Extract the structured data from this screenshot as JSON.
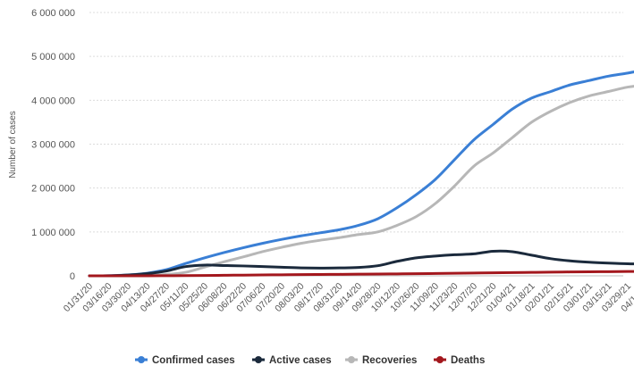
{
  "chart_data": {
    "type": "line",
    "ylabel": "Number of cases",
    "ylim": [
      0,
      6000000
    ],
    "yticks": [
      0,
      1000000,
      2000000,
      3000000,
      4000000,
      5000000,
      6000000
    ],
    "ytick_labels": [
      "0",
      "1 000 000",
      "2 000 000",
      "3 000 000",
      "4 000 000",
      "5 000 000",
      "6 000 000"
    ],
    "x_tick_labels": [
      "01/31/20",
      "03/16/20",
      "03/30/20",
      "04/13/20",
      "04/27/20",
      "05/11/20",
      "05/25/20",
      "06/08/20",
      "06/22/20",
      "07/06/20",
      "07/20/20",
      "08/03/20",
      "08/17/20",
      "08/31/20",
      "09/14/20",
      "09/28/20",
      "10/12/20",
      "10/26/20",
      "11/09/20",
      "11/23/20",
      "12/07/20",
      "12/21/20",
      "01/04/21",
      "01/18/21",
      "02/01/21",
      "02/15/21",
      "03/01/21",
      "03/15/21",
      "03/29/21",
      "04/12/21"
    ],
    "grid": true,
    "legend_position": "bottom",
    "x": [
      "01/31/20",
      "03/16/20",
      "03/30/20",
      "04/13/20",
      "04/27/20",
      "05/11/20",
      "05/25/20",
      "06/08/20",
      "06/22/20",
      "07/06/20",
      "07/20/20",
      "08/03/20",
      "08/17/20",
      "08/31/20",
      "09/14/20",
      "09/28/20",
      "10/12/20",
      "10/26/20",
      "11/09/20",
      "11/23/20",
      "12/07/20",
      "12/21/20",
      "01/04/21",
      "01/18/21",
      "02/01/21",
      "02/15/21",
      "03/01/21",
      "03/15/21",
      "03/29/21",
      "04/12/21",
      "04/21/21"
    ],
    "series": [
      {
        "name": "Confirmed cases",
        "color": "#3a7fd5",
        "values": [
          0,
          3000,
          20000,
          60000,
          140000,
          280000,
          410000,
          530000,
          640000,
          740000,
          830000,
          910000,
          980000,
          1050000,
          1150000,
          1300000,
          1550000,
          1850000,
          2200000,
          2650000,
          3100000,
          3450000,
          3800000,
          4050000,
          4200000,
          4350000,
          4450000,
          4550000,
          4620000,
          4700000,
          4750000
        ]
      },
      {
        "name": "Active cases",
        "color": "#1b2a3c",
        "values": [
          0,
          3000,
          18000,
          50000,
          110000,
          210000,
          245000,
          235000,
          225000,
          210000,
          195000,
          180000,
          175000,
          180000,
          190000,
          230000,
          330000,
          410000,
          450000,
          480000,
          500000,
          560000,
          550000,
          470000,
          390000,
          340000,
          310000,
          290000,
          275000,
          270000,
          270000
        ]
      },
      {
        "name": "Recoveries",
        "color": "#b7b7b7",
        "values": [
          0,
          0,
          2000,
          10000,
          30000,
          80000,
          200000,
          320000,
          430000,
          550000,
          650000,
          740000,
          810000,
          870000,
          940000,
          1000000,
          1150000,
          1350000,
          1650000,
          2050000,
          2500000,
          2800000,
          3150000,
          3500000,
          3750000,
          3950000,
          4100000,
          4200000,
          4300000,
          4350000,
          4380000
        ]
      },
      {
        "name": "Deaths",
        "color": "#a3171d",
        "values": [
          0,
          0,
          0,
          1000,
          3000,
          5000,
          8000,
          12000,
          16000,
          20000,
          24000,
          28000,
          31000,
          34000,
          37000,
          40000,
          44000,
          48000,
          53000,
          58000,
          63000,
          68000,
          74000,
          79000,
          84000,
          88000,
          92000,
          95000,
          98000,
          101000,
          103000
        ]
      }
    ]
  }
}
